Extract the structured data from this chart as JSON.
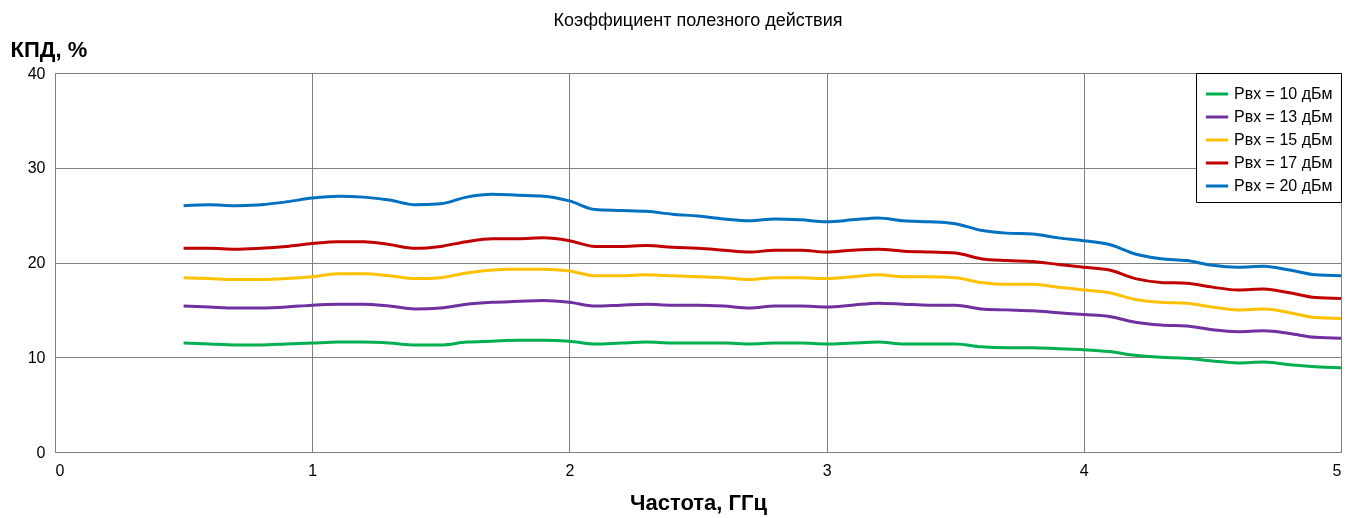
{
  "chart_data": {
    "type": "line",
    "title": "Коэффициент полезного действия",
    "xlabel": "Частота, ГГц",
    "ylabel": "КПД, %",
    "x": [
      0.5,
      0.6,
      0.7,
      0.8,
      0.9,
      1.0,
      1.1,
      1.2,
      1.3,
      1.4,
      1.5,
      1.6,
      1.7,
      1.8,
      1.9,
      2.0,
      2.1,
      2.2,
      2.3,
      2.4,
      2.5,
      2.6,
      2.7,
      2.8,
      2.9,
      3.0,
      3.1,
      3.2,
      3.3,
      3.4,
      3.5,
      3.6,
      3.7,
      3.8,
      3.9,
      4.0,
      4.1,
      4.2,
      4.3,
      4.4,
      4.5,
      4.6,
      4.7,
      4.8,
      4.9,
      5.0
    ],
    "series": [
      {
        "name": "Pвх = 10 дБм",
        "color": "#00b050",
        "values": [
          11.5,
          11.4,
          11.3,
          11.3,
          11.4,
          11.5,
          11.6,
          11.6,
          11.5,
          11.3,
          11.3,
          11.6,
          11.7,
          11.8,
          11.8,
          11.7,
          11.4,
          11.5,
          11.6,
          11.5,
          11.5,
          11.5,
          11.4,
          11.5,
          11.5,
          11.4,
          11.5,
          11.6,
          11.4,
          11.4,
          11.4,
          11.1,
          11.0,
          11.0,
          10.9,
          10.8,
          10.6,
          10.2,
          10.0,
          9.9,
          9.6,
          9.4,
          9.5,
          9.2,
          9.0,
          8.9
        ]
      },
      {
        "name": "Pвх = 13 дБм",
        "color": "#7030a0",
        "values": [
          15.4,
          15.3,
          15.2,
          15.2,
          15.3,
          15.5,
          15.6,
          15.6,
          15.4,
          15.1,
          15.2,
          15.6,
          15.8,
          15.9,
          16.0,
          15.8,
          15.4,
          15.5,
          15.6,
          15.5,
          15.5,
          15.4,
          15.2,
          15.4,
          15.4,
          15.3,
          15.5,
          15.7,
          15.6,
          15.5,
          15.5,
          15.1,
          15.0,
          14.9,
          14.7,
          14.5,
          14.3,
          13.7,
          13.4,
          13.3,
          12.9,
          12.7,
          12.8,
          12.5,
          12.1,
          12.0
        ]
      },
      {
        "name": "Pвх = 15 дБм",
        "color": "#ffc000",
        "values": [
          18.4,
          18.3,
          18.2,
          18.2,
          18.3,
          18.5,
          18.8,
          18.8,
          18.6,
          18.3,
          18.4,
          18.9,
          19.2,
          19.3,
          19.3,
          19.1,
          18.6,
          18.6,
          18.7,
          18.6,
          18.5,
          18.4,
          18.2,
          18.4,
          18.4,
          18.3,
          18.5,
          18.7,
          18.5,
          18.5,
          18.4,
          17.9,
          17.7,
          17.7,
          17.4,
          17.1,
          16.8,
          16.1,
          15.8,
          15.7,
          15.3,
          15.0,
          15.1,
          14.7,
          14.2,
          14.1
        ]
      },
      {
        "name": "Pвх = 17 дБм",
        "color": "#c00000",
        "values": [
          21.5,
          21.5,
          21.4,
          21.5,
          21.7,
          22.0,
          22.2,
          22.2,
          21.9,
          21.5,
          21.7,
          22.2,
          22.5,
          22.5,
          22.6,
          22.3,
          21.7,
          21.7,
          21.8,
          21.6,
          21.5,
          21.3,
          21.1,
          21.3,
          21.3,
          21.1,
          21.3,
          21.4,
          21.2,
          21.1,
          21.0,
          20.4,
          20.2,
          20.1,
          19.8,
          19.5,
          19.2,
          18.3,
          17.9,
          17.8,
          17.4,
          17.1,
          17.2,
          16.8,
          16.3,
          16.2
        ]
      },
      {
        "name": "Pвх = 20 дБм",
        "color": "#0070c0",
        "values": [
          26.0,
          26.1,
          26.0,
          26.1,
          26.4,
          26.8,
          27.0,
          26.9,
          26.6,
          26.1,
          26.2,
          26.9,
          27.2,
          27.1,
          27.0,
          26.5,
          25.6,
          25.5,
          25.4,
          25.1,
          24.9,
          24.6,
          24.4,
          24.6,
          24.5,
          24.3,
          24.5,
          24.7,
          24.4,
          24.3,
          24.1,
          23.4,
          23.1,
          23.0,
          22.6,
          22.3,
          21.9,
          20.9,
          20.4,
          20.2,
          19.7,
          19.5,
          19.6,
          19.2,
          18.7,
          18.6
        ]
      }
    ],
    "xlim": [
      0,
      5
    ],
    "xticks": [
      0,
      1,
      2,
      3,
      4,
      5
    ],
    "ylim": [
      0,
      40
    ],
    "yticks": [
      0,
      10,
      20,
      30,
      40
    ],
    "grid": true,
    "legend": "top right",
    "line_style": "solid",
    "marker": "none"
  }
}
